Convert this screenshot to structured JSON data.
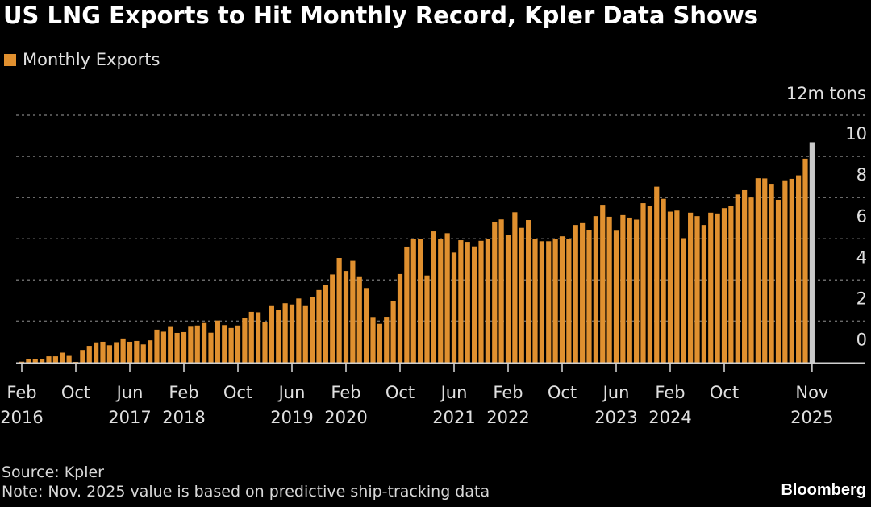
{
  "title": "US LNG Exports to Hit Monthly Record, Kpler Data Shows",
  "legend": [
    {
      "label": "Monthly Exports",
      "color": "#E0902F"
    }
  ],
  "unit_label": "12m tons",
  "footer": {
    "source": "Source: Kpler",
    "note": "Note: Nov. 2025 value is based on predictive ship-tracking data"
  },
  "brand": "Bloomberg",
  "colors": {
    "bar": "#E0902F",
    "highlight_bar": "#C9C9C9",
    "grid": "#6a6a6a",
    "axis": "#cfcfcf",
    "background": "#000000"
  },
  "chart_data": {
    "type": "bar",
    "title": "US LNG Exports to Hit Monthly Record, Kpler Data Shows",
    "xlabel": "",
    "ylabel": "m tons",
    "ylim": [
      0,
      12
    ],
    "yticks": [
      0,
      2,
      4,
      6,
      8,
      10,
      12
    ],
    "ytick_labels": [
      "0",
      "2",
      "4",
      "6",
      "8",
      "10",
      "12m tons"
    ],
    "y_axis_side": "right",
    "grid": true,
    "legend_position": "top-left",
    "start_month": "2016-02",
    "end_month": "2025-11",
    "highlight_last": true,
    "xticks": [
      {
        "index": 0,
        "line1": "Feb",
        "line2": "2016"
      },
      {
        "index": 8,
        "line1": "Oct",
        "line2": ""
      },
      {
        "index": 16,
        "line1": "Jun",
        "line2": "2017"
      },
      {
        "index": 24,
        "line1": "Feb",
        "line2": "2018"
      },
      {
        "index": 32,
        "line1": "Oct",
        "line2": ""
      },
      {
        "index": 40,
        "line1": "Jun",
        "line2": "2019"
      },
      {
        "index": 48,
        "line1": "Feb",
        "line2": "2020"
      },
      {
        "index": 56,
        "line1": "Oct",
        "line2": ""
      },
      {
        "index": 64,
        "line1": "Jun",
        "line2": "2021"
      },
      {
        "index": 72,
        "line1": "Feb",
        "line2": "2022"
      },
      {
        "index": 80,
        "line1": "Oct",
        "line2": ""
      },
      {
        "index": 88,
        "line1": "Jun",
        "line2": "2023"
      },
      {
        "index": 96,
        "line1": "Feb",
        "line2": "2024"
      },
      {
        "index": 104,
        "line1": "Oct",
        "line2": ""
      },
      {
        "index": 117,
        "line1": "Nov",
        "line2": "2025"
      }
    ],
    "series": [
      {
        "name": "Monthly Exports",
        "values": [
          0.03,
          0.16,
          0.16,
          0.16,
          0.29,
          0.29,
          0.47,
          0.31,
          0.02,
          0.6,
          0.8,
          0.97,
          1.0,
          0.83,
          0.98,
          1.16,
          1.0,
          1.04,
          0.87,
          1.07,
          1.59,
          1.49,
          1.72,
          1.43,
          1.47,
          1.73,
          1.79,
          1.91,
          1.44,
          2.03,
          1.81,
          1.67,
          1.79,
          2.15,
          2.45,
          2.43,
          1.96,
          2.73,
          2.53,
          2.87,
          2.81,
          3.1,
          2.73,
          3.16,
          3.51,
          3.74,
          4.27,
          5.07,
          4.44,
          4.93,
          4.14,
          3.61,
          2.2,
          1.87,
          2.21,
          2.98,
          4.29,
          5.62,
          5.98,
          6.01,
          4.22,
          6.36,
          5.98,
          6.27,
          5.33,
          5.93,
          5.85,
          5.63,
          5.9,
          6.01,
          6.83,
          6.94,
          6.18,
          7.29,
          6.53,
          6.91,
          6.01,
          5.88,
          5.88,
          5.97,
          6.12,
          5.98,
          6.67,
          6.76,
          6.44,
          7.1,
          7.65,
          7.07,
          6.43,
          7.15,
          7.03,
          6.93,
          7.73,
          7.59,
          8.53,
          7.94,
          7.32,
          7.37,
          6.03,
          7.27,
          7.1,
          6.67,
          7.27,
          7.23,
          7.49,
          7.61,
          8.15,
          8.36,
          8.0,
          8.94,
          8.93,
          8.67,
          7.89,
          8.84,
          8.91,
          9.08,
          9.89,
          10.69
        ]
      }
    ]
  }
}
